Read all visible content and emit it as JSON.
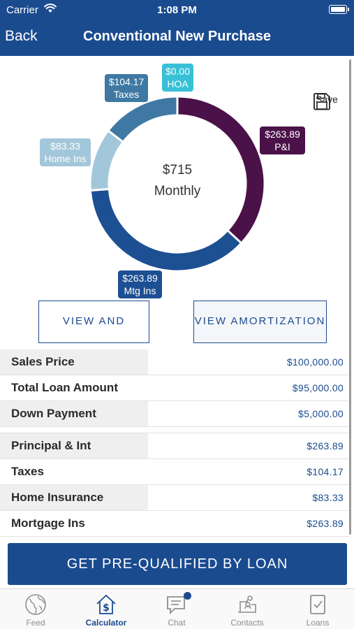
{
  "status": {
    "carrier": "Carrier",
    "time": "1:08 PM"
  },
  "nav": {
    "back": "Back",
    "title": "Conventional New Purchase"
  },
  "chart": {
    "total": "$715",
    "period": "Monthly",
    "save_label": "Save",
    "segments": [
      {
        "key": "pi",
        "label_amount": "$263.89",
        "label_name": "P&I",
        "value": 263.89,
        "color": "#4b1149"
      },
      {
        "key": "mtg",
        "label_amount": "$263.89",
        "label_name": "Mtg Ins",
        "value": 263.89,
        "color": "#1d4f93"
      },
      {
        "key": "home",
        "label_amount": "$83.33",
        "label_name": "Home Ins",
        "value": 83.33,
        "color": "#a3c7da"
      },
      {
        "key": "taxes",
        "label_amount": "$104.17",
        "label_name": "Taxes",
        "value": 104.17,
        "color": "#3f79a3"
      },
      {
        "key": "hoa",
        "label_amount": "$0.00",
        "label_name": "HOA",
        "value": 0.0,
        "color": "#37c0d6"
      }
    ]
  },
  "buttons": {
    "share": "VIEW AND SHARE",
    "amortization": "VIEW AMORTIZATION"
  },
  "loan_rows": [
    {
      "label": "Sales Price",
      "value": "$100,000.00"
    },
    {
      "label": "Total Loan Amount",
      "value": "$95,000.00"
    },
    {
      "label": "Down Payment",
      "value": "$5,000.00"
    }
  ],
  "payment_rows": [
    {
      "label": "Principal & Int",
      "value": "$263.89"
    },
    {
      "label": "Taxes",
      "value": "$104.17"
    },
    {
      "label": "Home Insurance",
      "value": "$83.33"
    },
    {
      "label": "Mortgage Ins",
      "value": "$263.89"
    }
  ],
  "cta": "GET PRE-QUALIFIED BY LOAN",
  "tabs": [
    {
      "label": "Feed",
      "icon": "globe-icon"
    },
    {
      "label": "Calculator",
      "icon": "dollar-house-icon",
      "active": true
    },
    {
      "label": "Chat",
      "icon": "chat-icon",
      "badge": true
    },
    {
      "label": "Contacts",
      "icon": "contacts-icon"
    },
    {
      "label": "Loans",
      "icon": "loans-icon"
    }
  ]
}
